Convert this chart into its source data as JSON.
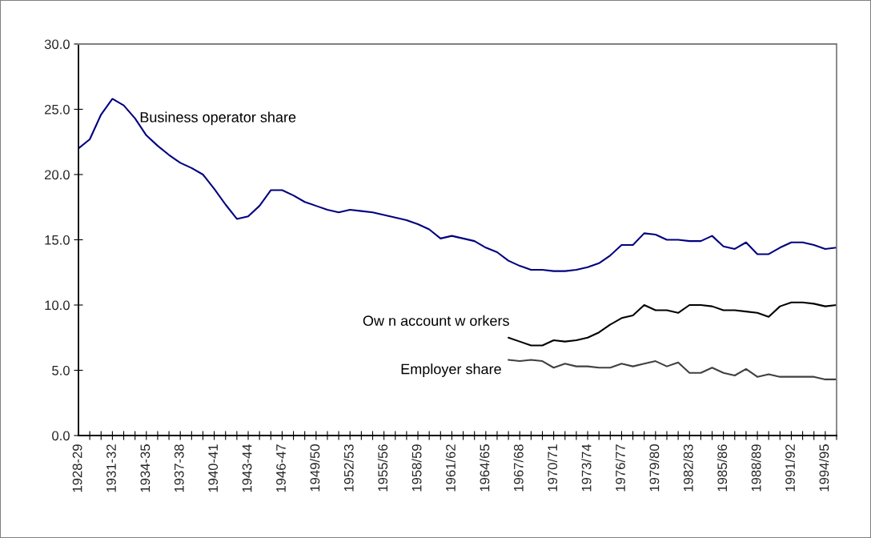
{
  "chart_data": {
    "type": "line",
    "categories": [
      "1928-29",
      null,
      null,
      "1931-32",
      null,
      null,
      "1934-35",
      null,
      null,
      "1937-38",
      null,
      null,
      "1940-41",
      null,
      null,
      "1943-44",
      null,
      null,
      "1946-47",
      null,
      null,
      "1949/50",
      null,
      null,
      "1952/53",
      null,
      null,
      "1955/56",
      null,
      null,
      "1958/59",
      null,
      null,
      "1961/62",
      null,
      null,
      "1964/65",
      null,
      null,
      "1967/68",
      null,
      null,
      "1970/71",
      null,
      null,
      "1973/74",
      null,
      null,
      "1976/77",
      null,
      null,
      "1979/80",
      null,
      null,
      "1982/83",
      null,
      null,
      "1985/86",
      null,
      null,
      "1988/89",
      null,
      null,
      "1991/92",
      null,
      null,
      "1994/95",
      null
    ],
    "series": [
      {
        "name": "Business operator share",
        "color": "#000080",
        "values": [
          22.0,
          22.7,
          24.6,
          25.8,
          25.3,
          24.3,
          23.0,
          22.2,
          21.5,
          20.9,
          20.5,
          20.0,
          18.9,
          17.7,
          16.6,
          16.8,
          17.6,
          18.8,
          18.8,
          18.4,
          17.9,
          17.6,
          17.3,
          17.1,
          17.3,
          17.2,
          17.1,
          16.9,
          16.7,
          16.5,
          16.2,
          15.8,
          15.1,
          15.3,
          15.1,
          14.9,
          14.4,
          14.05,
          13.4,
          13.0,
          12.7,
          12.7,
          12.6,
          12.6,
          12.7,
          12.9,
          13.2,
          13.8,
          14.6,
          14.6,
          15.5,
          15.4,
          15.0,
          15.0,
          14.9,
          14.9,
          15.3,
          14.5,
          14.3,
          14.8,
          13.9,
          13.9,
          14.4,
          14.8,
          14.8,
          14.6,
          14.3,
          14.4
        ]
      },
      {
        "name": "Ow n account w orkers",
        "color": "#000000",
        "values": [
          null,
          null,
          null,
          null,
          null,
          null,
          null,
          null,
          null,
          null,
          null,
          null,
          null,
          null,
          null,
          null,
          null,
          null,
          null,
          null,
          null,
          null,
          null,
          null,
          null,
          null,
          null,
          null,
          null,
          null,
          null,
          null,
          null,
          null,
          null,
          null,
          null,
          null,
          7.5,
          7.2,
          6.9,
          6.9,
          7.3,
          7.2,
          7.3,
          7.5,
          7.9,
          8.5,
          9.0,
          9.2,
          10.0,
          9.6,
          9.6,
          9.4,
          10.0,
          10.0,
          9.9,
          9.6,
          9.6,
          9.5,
          9.4,
          9.1,
          9.9,
          10.2,
          10.2,
          10.1,
          9.9,
          10.0
        ]
      },
      {
        "name": "Employer share",
        "color": "#404040",
        "values": [
          null,
          null,
          null,
          null,
          null,
          null,
          null,
          null,
          null,
          null,
          null,
          null,
          null,
          null,
          null,
          null,
          null,
          null,
          null,
          null,
          null,
          null,
          null,
          null,
          null,
          null,
          null,
          null,
          null,
          null,
          null,
          null,
          null,
          null,
          null,
          null,
          null,
          null,
          5.8,
          5.7,
          5.8,
          5.7,
          5.2,
          5.5,
          5.3,
          5.3,
          5.2,
          5.2,
          5.5,
          5.3,
          5.5,
          5.7,
          5.3,
          5.6,
          4.8,
          4.8,
          5.2,
          4.8,
          4.6,
          5.1,
          4.5,
          4.7,
          4.5,
          4.5,
          4.5,
          4.5,
          4.3,
          4.3
        ]
      }
    ],
    "ylim": [
      0,
      30
    ],
    "yticks": [
      {
        "value": 0,
        "label": "0.0"
      },
      {
        "value": 5,
        "label": "5.0"
      },
      {
        "value": 10,
        "label": "10.0"
      },
      {
        "value": 15,
        "label": "15.0"
      },
      {
        "value": 20,
        "label": "20.0"
      },
      {
        "value": 25,
        "label": "25.0"
      },
      {
        "value": 30,
        "label": "30.0"
      }
    ],
    "grid": false,
    "legend": false,
    "marker": "none",
    "line_style": "solid"
  }
}
